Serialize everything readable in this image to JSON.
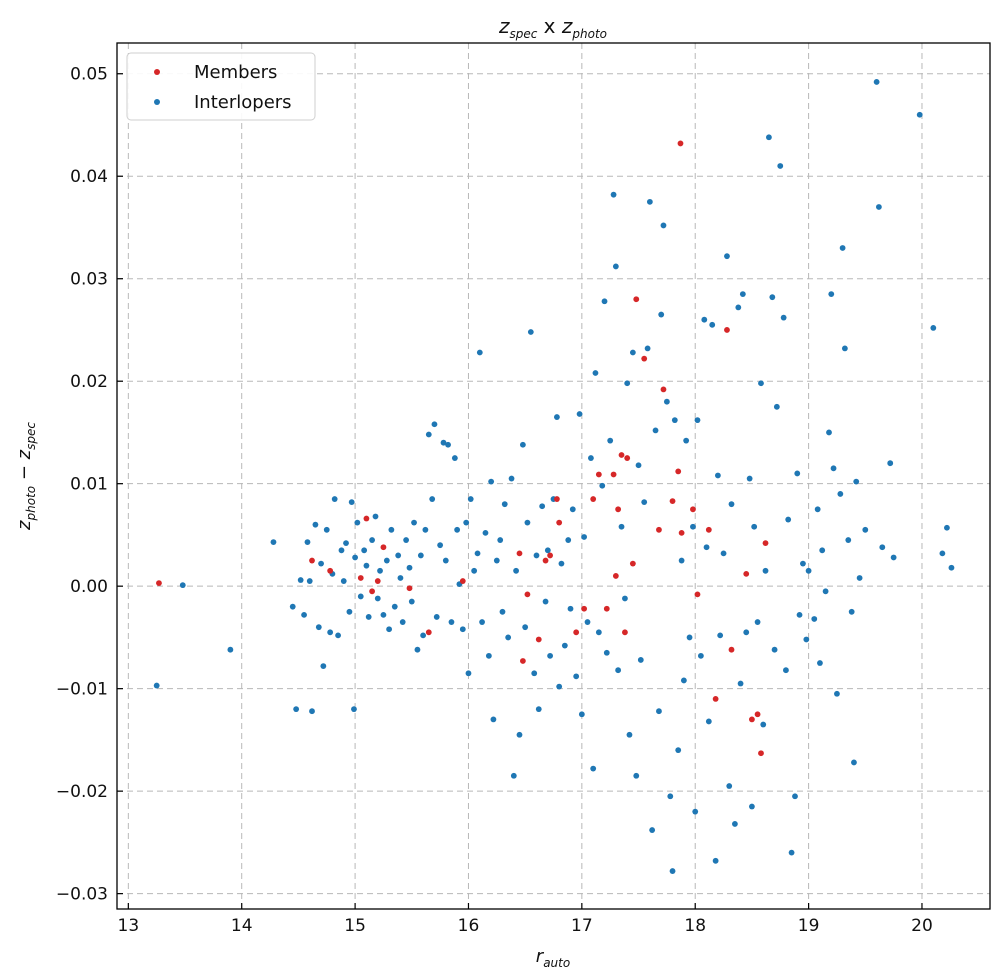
{
  "chart_data": {
    "type": "scatter",
    "title": {
      "main_a": "z",
      "sub_a": "spec",
      "mid": " x ",
      "main_b": "z",
      "sub_b": "photo"
    },
    "xlabel": {
      "main": "r",
      "sub": "auto"
    },
    "ylabel": {
      "a": "z",
      "a_sub": "photo",
      "op": " − ",
      "b": "z",
      "b_sub": "spec"
    },
    "xlim": [
      12.9,
      20.6
    ],
    "ylim": [
      -0.0315,
      0.053
    ],
    "xticks": [
      13,
      14,
      15,
      16,
      17,
      18,
      19,
      20
    ],
    "xtick_labels": [
      "13",
      "14",
      "15",
      "16",
      "17",
      "18",
      "19",
      "20"
    ],
    "yticks": [
      -0.03,
      -0.02,
      -0.01,
      0.0,
      0.01,
      0.02,
      0.03,
      0.04,
      0.05
    ],
    "ytick_labels": [
      "−0.03",
      "−0.02",
      "−0.01",
      "0.00",
      "0.01",
      "0.02",
      "0.03",
      "0.04",
      "0.05"
    ],
    "grid": true,
    "legend_position": "top-left",
    "series": [
      {
        "name": "Members",
        "color": "#d62728",
        "points": [
          [
            13.27,
            0.0003
          ],
          [
            14.62,
            0.0025
          ],
          [
            14.78,
            0.0015
          ],
          [
            15.1,
            0.0066
          ],
          [
            15.05,
            0.0008
          ],
          [
            15.25,
            0.0038
          ],
          [
            15.2,
            0.0005
          ],
          [
            15.15,
            -0.0005
          ],
          [
            15.48,
            -0.0002
          ],
          [
            15.65,
            -0.0045
          ],
          [
            15.95,
            0.0005
          ],
          [
            16.45,
            0.0032
          ],
          [
            16.48,
            -0.0073
          ],
          [
            16.52,
            -0.0008
          ],
          [
            16.62,
            -0.0052
          ],
          [
            16.68,
            0.0025
          ],
          [
            16.72,
            0.003
          ],
          [
            16.78,
            0.0085
          ],
          [
            16.8,
            0.0062
          ],
          [
            16.95,
            -0.0045
          ],
          [
            17.1,
            0.0085
          ],
          [
            17.15,
            0.0109
          ],
          [
            17.3,
            0.001
          ],
          [
            17.28,
            0.0109
          ],
          [
            17.32,
            0.0075
          ],
          [
            17.35,
            0.0128
          ],
          [
            17.4,
            0.0125
          ],
          [
            17.45,
            0.0022
          ],
          [
            17.38,
            -0.0045
          ],
          [
            17.22,
            -0.0022
          ],
          [
            17.48,
            0.028
          ],
          [
            17.55,
            0.0222
          ],
          [
            17.72,
            0.0192
          ],
          [
            17.8,
            0.0083
          ],
          [
            17.85,
            0.0112
          ],
          [
            17.87,
            0.0432
          ],
          [
            17.88,
            0.0052
          ],
          [
            17.68,
            0.0055
          ],
          [
            17.98,
            0.0075
          ],
          [
            18.02,
            -0.0008
          ],
          [
            18.12,
            0.0055
          ],
          [
            18.18,
            -0.011
          ],
          [
            18.28,
            0.025
          ],
          [
            18.32,
            -0.0062
          ],
          [
            18.45,
            0.0012
          ],
          [
            18.5,
            -0.013
          ],
          [
            18.55,
            -0.0125
          ],
          [
            18.58,
            -0.0163
          ],
          [
            18.62,
            0.0042
          ],
          [
            17.02,
            -0.0022
          ]
        ]
      },
      {
        "name": "Interlopers",
        "color": "#1f77b4",
        "points": [
          [
            13.25,
            -0.0097
          ],
          [
            13.48,
            0.0001
          ],
          [
            13.9,
            -0.0062
          ],
          [
            14.28,
            0.0043
          ],
          [
            14.45,
            -0.002
          ],
          [
            14.48,
            -0.012
          ],
          [
            14.52,
            0.0006
          ],
          [
            14.55,
            -0.0028
          ],
          [
            14.58,
            0.0043
          ],
          [
            14.6,
            0.0005
          ],
          [
            14.62,
            -0.0122
          ],
          [
            14.65,
            0.006
          ],
          [
            14.68,
            -0.004
          ],
          [
            14.7,
            0.0022
          ],
          [
            14.72,
            -0.0078
          ],
          [
            14.75,
            0.0055
          ],
          [
            14.78,
            -0.0045
          ],
          [
            14.8,
            0.0012
          ],
          [
            14.82,
            0.0085
          ],
          [
            14.85,
            -0.0048
          ],
          [
            14.88,
            0.0035
          ],
          [
            14.9,
            0.0005
          ],
          [
            14.92,
            0.0042
          ],
          [
            14.95,
            -0.0025
          ],
          [
            14.97,
            0.0082
          ],
          [
            14.99,
            -0.012
          ],
          [
            15.0,
            0.0028
          ],
          [
            15.02,
            0.0062
          ],
          [
            15.05,
            -0.001
          ],
          [
            15.08,
            0.0035
          ],
          [
            15.1,
            0.002
          ],
          [
            15.12,
            -0.003
          ],
          [
            15.15,
            0.0045
          ],
          [
            15.18,
            0.0068
          ],
          [
            15.2,
            -0.0012
          ],
          [
            15.22,
            0.0015
          ],
          [
            15.25,
            -0.0028
          ],
          [
            15.28,
            0.0025
          ],
          [
            15.3,
            -0.0042
          ],
          [
            15.32,
            0.0055
          ],
          [
            15.35,
            -0.002
          ],
          [
            15.38,
            0.003
          ],
          [
            15.4,
            0.0008
          ],
          [
            15.42,
            -0.0035
          ],
          [
            15.45,
            0.0045
          ],
          [
            15.48,
            0.0018
          ],
          [
            15.5,
            -0.0015
          ],
          [
            15.52,
            0.0062
          ],
          [
            15.55,
            -0.0062
          ],
          [
            15.58,
            0.003
          ],
          [
            15.6,
            -0.0048
          ],
          [
            15.62,
            0.0055
          ],
          [
            15.65,
            0.0148
          ],
          [
            15.68,
            0.0085
          ],
          [
            15.7,
            0.0158
          ],
          [
            15.72,
            -0.003
          ],
          [
            15.75,
            0.004
          ],
          [
            15.78,
            0.014
          ],
          [
            15.8,
            0.0025
          ],
          [
            15.82,
            0.0138
          ],
          [
            15.85,
            -0.0035
          ],
          [
            15.88,
            0.0125
          ],
          [
            15.9,
            0.0055
          ],
          [
            15.92,
            0.0002
          ],
          [
            15.95,
            -0.0042
          ],
          [
            15.98,
            0.0062
          ],
          [
            16.0,
            -0.0085
          ],
          [
            16.02,
            0.0085
          ],
          [
            16.05,
            0.0015
          ],
          [
            16.08,
            0.0032
          ],
          [
            16.1,
            0.0228
          ],
          [
            16.12,
            -0.0035
          ],
          [
            16.15,
            0.0052
          ],
          [
            16.18,
            -0.0068
          ],
          [
            16.2,
            0.0102
          ],
          [
            16.22,
            -0.013
          ],
          [
            16.25,
            0.0025
          ],
          [
            16.28,
            0.0045
          ],
          [
            16.3,
            -0.0025
          ],
          [
            16.32,
            0.008
          ],
          [
            16.35,
            -0.005
          ],
          [
            16.38,
            0.0105
          ],
          [
            16.4,
            -0.0185
          ],
          [
            16.42,
            0.0015
          ],
          [
            16.45,
            -0.0145
          ],
          [
            16.48,
            0.0138
          ],
          [
            16.5,
            -0.004
          ],
          [
            16.52,
            0.0062
          ],
          [
            16.55,
            0.0248
          ],
          [
            16.58,
            -0.0085
          ],
          [
            16.6,
            0.003
          ],
          [
            16.62,
            -0.012
          ],
          [
            16.65,
            0.0078
          ],
          [
            16.68,
            -0.0015
          ],
          [
            16.7,
            0.0035
          ],
          [
            16.72,
            -0.0068
          ],
          [
            16.75,
            0.0085
          ],
          [
            16.78,
            0.0165
          ],
          [
            16.8,
            -0.0098
          ],
          [
            16.82,
            0.0022
          ],
          [
            16.85,
            -0.0058
          ],
          [
            16.88,
            0.0045
          ],
          [
            16.9,
            -0.0022
          ],
          [
            16.92,
            0.0075
          ],
          [
            16.95,
            -0.0088
          ],
          [
            16.98,
            0.0168
          ],
          [
            17.0,
            -0.0125
          ],
          [
            17.02,
            0.0048
          ],
          [
            17.05,
            -0.0035
          ],
          [
            17.08,
            0.0125
          ],
          [
            17.1,
            -0.0178
          ],
          [
            17.12,
            0.0208
          ],
          [
            17.15,
            -0.0045
          ],
          [
            17.18,
            0.0098
          ],
          [
            17.2,
            0.0278
          ],
          [
            17.22,
            -0.0065
          ],
          [
            17.25,
            0.0142
          ],
          [
            17.28,
            0.0382
          ],
          [
            17.3,
            0.0312
          ],
          [
            17.32,
            -0.0082
          ],
          [
            17.35,
            0.0058
          ],
          [
            17.38,
            -0.0012
          ],
          [
            17.4,
            0.0198
          ],
          [
            17.42,
            -0.0145
          ],
          [
            17.45,
            0.0228
          ],
          [
            17.48,
            -0.0185
          ],
          [
            17.5,
            0.0118
          ],
          [
            17.52,
            -0.0072
          ],
          [
            17.55,
            0.0082
          ],
          [
            17.58,
            0.0232
          ],
          [
            17.6,
            0.0375
          ],
          [
            17.62,
            -0.0238
          ],
          [
            17.65,
            0.0152
          ],
          [
            17.68,
            -0.0122
          ],
          [
            17.7,
            0.0265
          ],
          [
            17.72,
            0.0352
          ],
          [
            17.75,
            0.018
          ],
          [
            17.78,
            -0.0205
          ],
          [
            17.8,
            -0.0278
          ],
          [
            17.82,
            0.0162
          ],
          [
            17.85,
            -0.016
          ],
          [
            17.88,
            0.0025
          ],
          [
            17.9,
            -0.0092
          ],
          [
            17.92,
            0.0142
          ],
          [
            17.95,
            -0.005
          ],
          [
            17.98,
            0.0058
          ],
          [
            18.0,
            -0.022
          ],
          [
            18.02,
            0.0162
          ],
          [
            18.05,
            -0.0068
          ],
          [
            18.08,
            0.026
          ],
          [
            18.1,
            0.0038
          ],
          [
            18.12,
            -0.0132
          ],
          [
            18.15,
            0.0255
          ],
          [
            18.18,
            -0.0268
          ],
          [
            18.2,
            0.0108
          ],
          [
            18.22,
            -0.0048
          ],
          [
            18.25,
            0.0032
          ],
          [
            18.28,
            0.0322
          ],
          [
            18.3,
            -0.0195
          ],
          [
            18.32,
            0.008
          ],
          [
            18.35,
            -0.0232
          ],
          [
            18.38,
            0.0272
          ],
          [
            18.4,
            -0.0095
          ],
          [
            18.42,
            0.0285
          ],
          [
            18.45,
            -0.0045
          ],
          [
            18.48,
            0.0105
          ],
          [
            18.5,
            -0.0215
          ],
          [
            18.52,
            0.0058
          ],
          [
            18.55,
            -0.0035
          ],
          [
            18.58,
            0.0198
          ],
          [
            18.6,
            -0.0135
          ],
          [
            18.62,
            0.0015
          ],
          [
            18.65,
            0.0438
          ],
          [
            18.68,
            0.0282
          ],
          [
            18.7,
            -0.0062
          ],
          [
            18.72,
            0.0175
          ],
          [
            18.75,
            0.041
          ],
          [
            18.78,
            0.0262
          ],
          [
            18.8,
            -0.0082
          ],
          [
            18.82,
            0.0065
          ],
          [
            18.85,
            -0.026
          ],
          [
            18.88,
            -0.0205
          ],
          [
            18.9,
            0.011
          ],
          [
            18.92,
            -0.0028
          ],
          [
            18.95,
            0.0022
          ],
          [
            18.98,
            -0.0052
          ],
          [
            19.0,
            0.0015
          ],
          [
            19.05,
            -0.0032
          ],
          [
            19.08,
            0.0075
          ],
          [
            19.1,
            -0.0075
          ],
          [
            19.12,
            0.0035
          ],
          [
            19.15,
            -0.0005
          ],
          [
            19.18,
            0.015
          ],
          [
            19.2,
            0.0285
          ],
          [
            19.22,
            0.0115
          ],
          [
            19.25,
            -0.0105
          ],
          [
            19.28,
            0.009
          ],
          [
            19.3,
            0.033
          ],
          [
            19.32,
            0.0232
          ],
          [
            19.35,
            0.0045
          ],
          [
            19.38,
            -0.0025
          ],
          [
            19.4,
            -0.0172
          ],
          [
            19.42,
            0.0102
          ],
          [
            19.45,
            0.0008
          ],
          [
            19.5,
            0.0055
          ],
          [
            19.6,
            0.0492
          ],
          [
            19.62,
            0.037
          ],
          [
            19.65,
            0.0038
          ],
          [
            19.72,
            0.012
          ],
          [
            19.75,
            0.0028
          ],
          [
            19.98,
            0.046
          ],
          [
            20.1,
            0.0252
          ],
          [
            20.18,
            0.0032
          ],
          [
            20.22,
            0.0057
          ],
          [
            20.26,
            0.0018
          ]
        ]
      }
    ]
  }
}
